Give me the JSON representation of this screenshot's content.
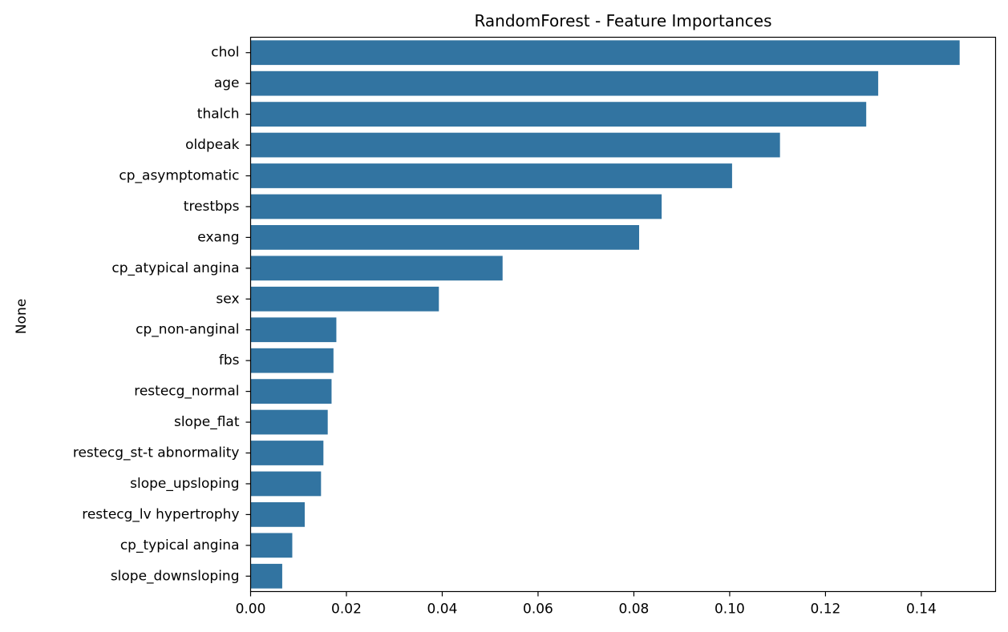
{
  "chart_data": {
    "type": "bar",
    "orientation": "horizontal",
    "title": "RandomForest - Feature Importances",
    "xlabel": "",
    "ylabel": "None",
    "categories": [
      "chol",
      "age",
      "thalch",
      "oldpeak",
      "cp_asymptomatic",
      "trestbps",
      "exang",
      "cp_atypical angina",
      "sex",
      "cp_non-anginal",
      "fbs",
      "restecg_normal",
      "slope_flat",
      "restecg_st-t abnormality",
      "slope_upsloping",
      "restecg_lv hypertrophy",
      "cp_typical angina",
      "slope_downsloping"
    ],
    "values": [
      0.148,
      0.131,
      0.1285,
      0.1105,
      0.1005,
      0.0858,
      0.0811,
      0.0526,
      0.0393,
      0.0179,
      0.0173,
      0.0169,
      0.0161,
      0.0152,
      0.0147,
      0.0113,
      0.0087,
      0.0066
    ],
    "xlim": [
      0.0,
      0.1555
    ],
    "xticks": [
      0.0,
      0.02,
      0.04,
      0.06,
      0.08,
      0.1,
      0.12,
      0.14
    ],
    "xtick_labels": [
      "0.00",
      "0.02",
      "0.04",
      "0.06",
      "0.08",
      "0.10",
      "0.12",
      "0.14"
    ],
    "bar_color": "#3274a1",
    "grid": false,
    "legend": "none"
  }
}
